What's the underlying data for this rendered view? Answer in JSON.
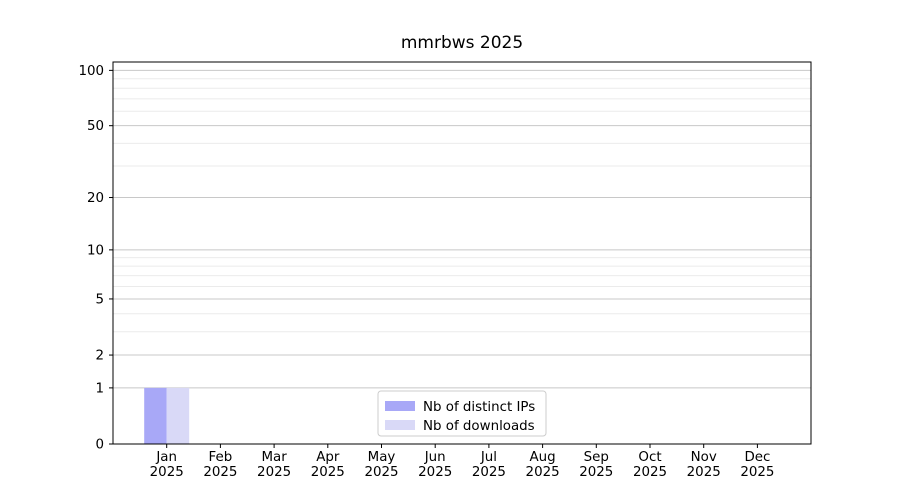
{
  "title": "mmrbws 2025",
  "chart_data": {
    "type": "bar",
    "title": "mmrbws 2025",
    "categories": [
      "Jan 2025",
      "Feb 2025",
      "Mar 2025",
      "Apr 2025",
      "May 2025",
      "Jun 2025",
      "Jul 2025",
      "Aug 2025",
      "Sep 2025",
      "Oct 2025",
      "Nov 2025",
      "Dec 2025"
    ],
    "series": [
      {
        "name": "Nb of distinct IPs",
        "color": "#a8a8f7",
        "values": [
          1,
          0,
          0,
          0,
          0,
          0,
          0,
          0,
          0,
          0,
          0,
          0
        ]
      },
      {
        "name": "Nb of downloads",
        "color": "#d9d9f7",
        "values": [
          1,
          0,
          0,
          0,
          0,
          0,
          0,
          0,
          0,
          0,
          0,
          0
        ]
      }
    ],
    "xlabel": "",
    "ylabel": "",
    "yscale": "log1p",
    "ylim": [
      0,
      111
    ],
    "y_major_ticks": [
      0,
      1,
      2,
      5,
      10,
      20,
      50,
      100
    ],
    "y_minor_ticks": [
      3,
      4,
      6,
      7,
      8,
      9,
      30,
      40,
      60,
      70,
      80,
      90
    ],
    "grid": "horizontal",
    "legend_position": "lower center"
  },
  "colors": {
    "background": "#ffffff",
    "spine": "#000000",
    "tick": "#000000",
    "grid_major": "#c8c8c8",
    "grid_minor": "#ebebeb",
    "text": "#000000",
    "legend_border": "#cccccc",
    "legend_background": "#ffffff"
  }
}
